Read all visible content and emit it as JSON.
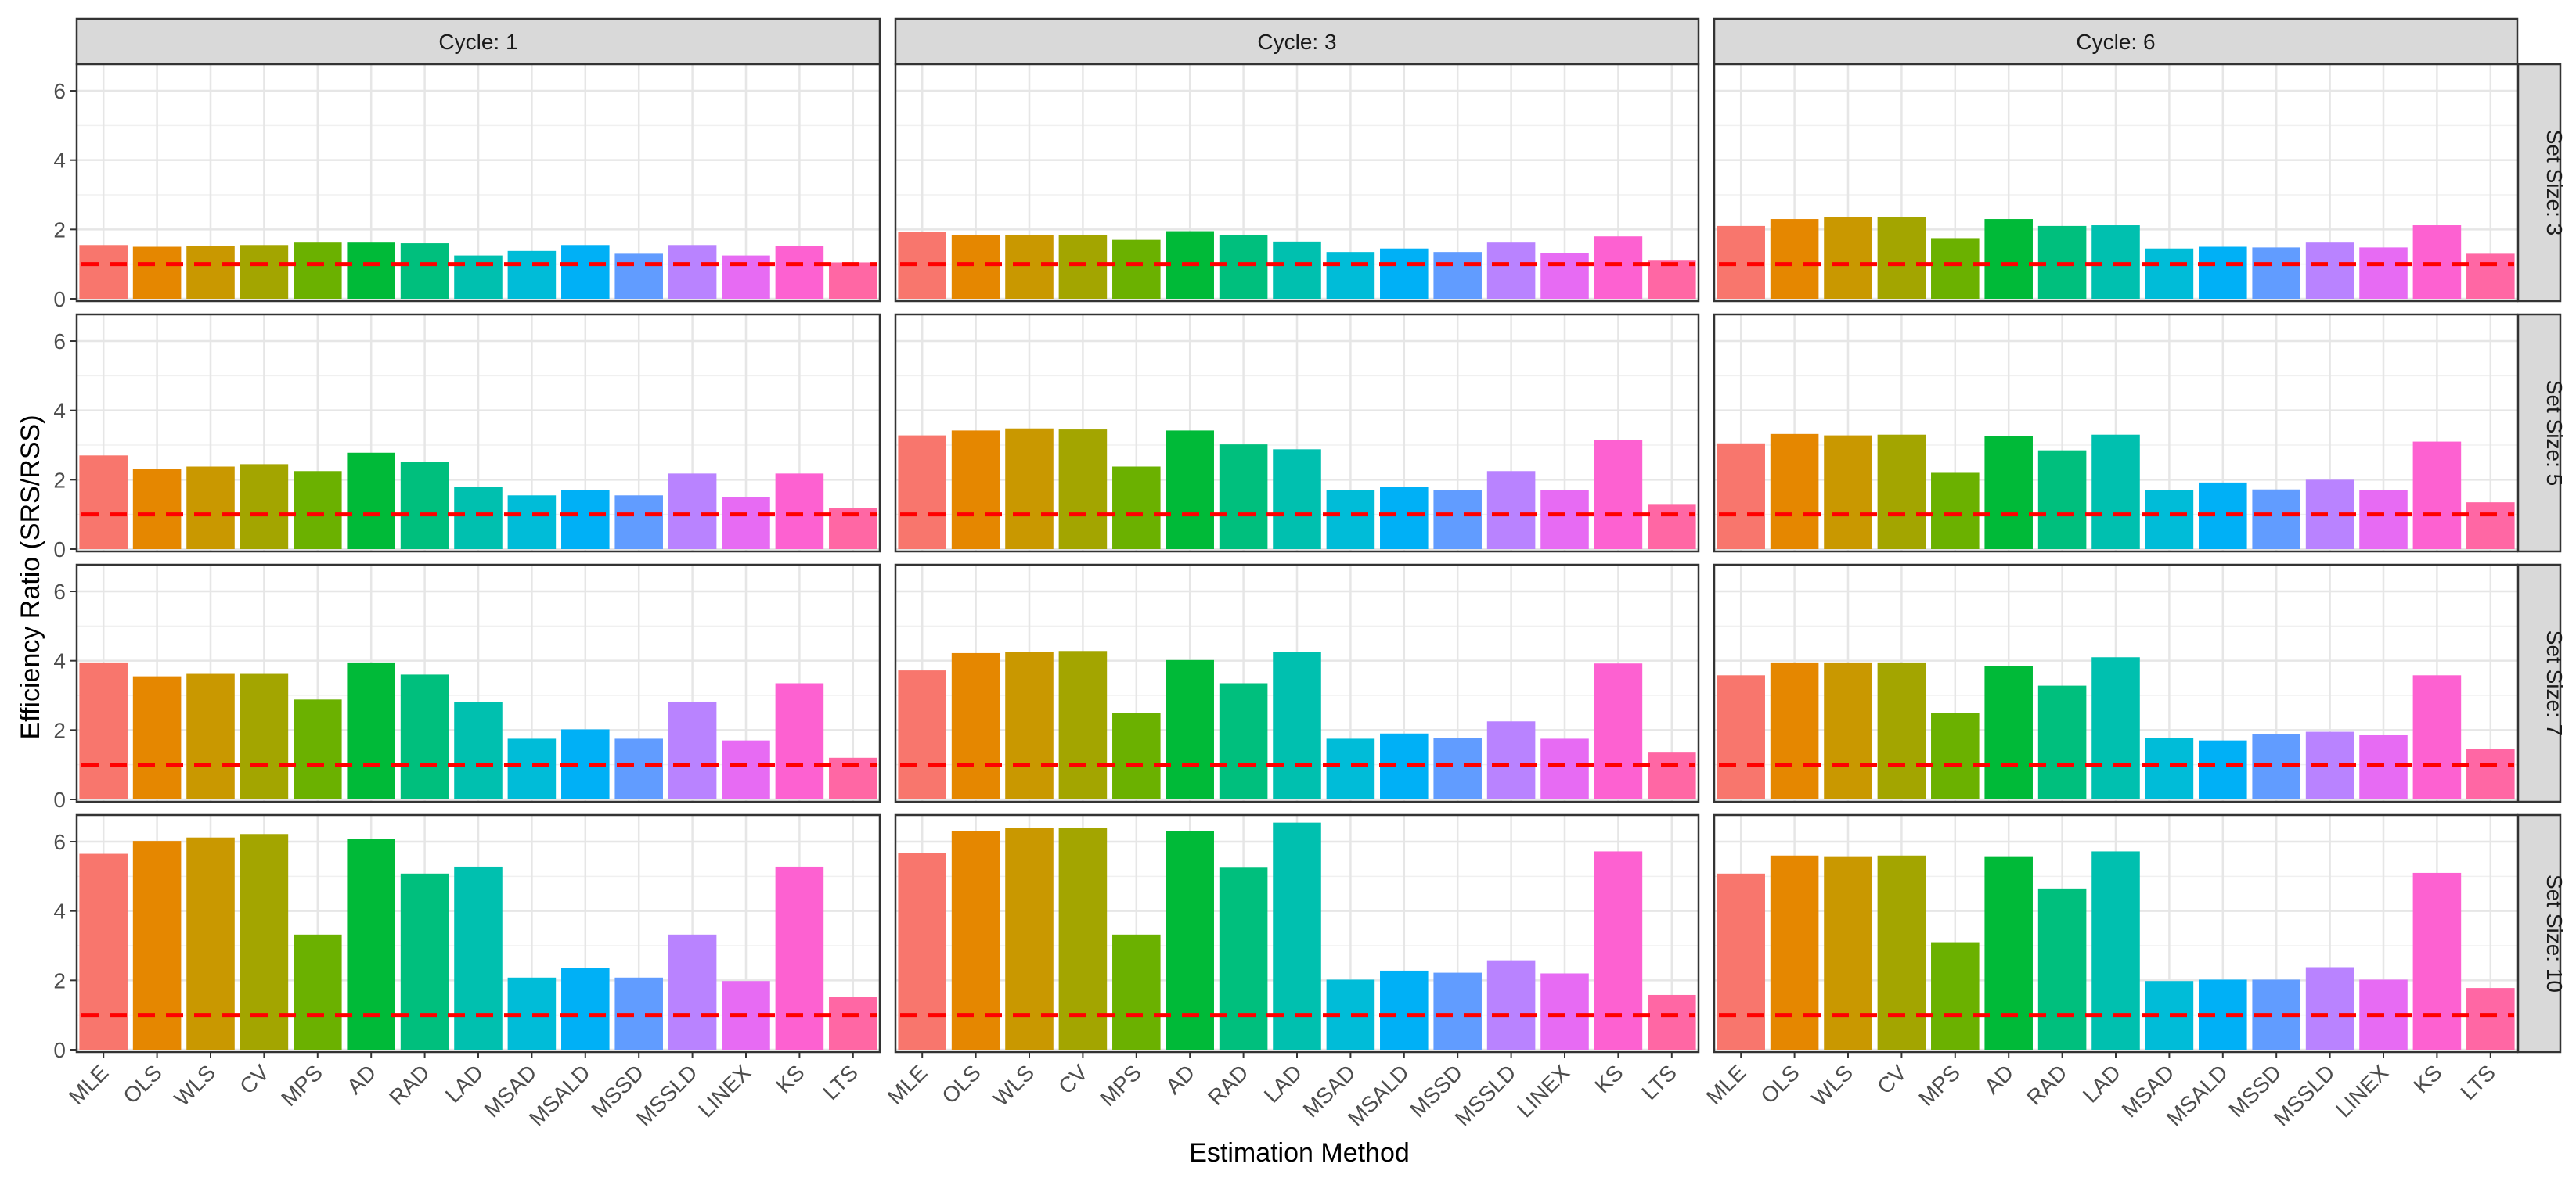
{
  "chart_data": {
    "type": "bar",
    "facet_layout": "grid",
    "xlabel": "Estimation Method",
    "ylabel": "Efficiency Ratio (SRS/RSS)",
    "ylim": [
      0,
      6.7
    ],
    "yticks": [
      "0",
      "2",
      "4",
      "6"
    ],
    "ytick_values": [
      0,
      2,
      4,
      6
    ],
    "reference_line": {
      "value": 1,
      "color": "#ff0000",
      "style": "dashed"
    },
    "categories": [
      "MLE",
      "OLS",
      "WLS",
      "CV",
      "MPS",
      "AD",
      "RAD",
      "LAD",
      "MSAD",
      "MSALD",
      "MSSD",
      "MSSLD",
      "LINEX",
      "KS",
      "LTS"
    ],
    "colors": [
      "#F8766D",
      "#E58700",
      "#C99800",
      "#A3A500",
      "#6BB100",
      "#00BA38",
      "#00BF7D",
      "#00C0AF",
      "#00BCD8",
      "#00B0F6",
      "#619CFF",
      "#B983FF",
      "#E76BF3",
      "#FD61D1",
      "#FF67A4"
    ],
    "col_facets": [
      "Cycle: 1",
      "Cycle: 3",
      "Cycle: 6"
    ],
    "row_facets": [
      "Set Size: 3",
      "Set Size: 5",
      "Set Size: 7",
      "Set Size: 10"
    ],
    "values": [
      [
        [
          1.55,
          1.5,
          1.52,
          1.55,
          1.62,
          1.62,
          1.6,
          1.25,
          1.38,
          1.55,
          1.3,
          1.55,
          1.25,
          1.52,
          1.05
        ],
        [
          1.92,
          1.85,
          1.85,
          1.85,
          1.7,
          1.95,
          1.85,
          1.65,
          1.35,
          1.45,
          1.35,
          1.62,
          1.32,
          1.8,
          1.1
        ],
        [
          2.1,
          2.3,
          2.35,
          2.35,
          1.75,
          2.3,
          2.1,
          2.12,
          1.45,
          1.5,
          1.48,
          1.62,
          1.48,
          2.12,
          1.3
        ]
      ],
      [
        [
          2.7,
          2.32,
          2.38,
          2.45,
          2.25,
          2.78,
          2.52,
          1.8,
          1.55,
          1.7,
          1.55,
          2.18,
          1.5,
          2.18,
          1.18
        ],
        [
          3.28,
          3.42,
          3.48,
          3.45,
          2.38,
          3.42,
          3.02,
          2.88,
          1.7,
          1.8,
          1.7,
          2.25,
          1.7,
          3.15,
          1.3
        ],
        [
          3.05,
          3.32,
          3.28,
          3.3,
          2.2,
          3.25,
          2.85,
          3.3,
          1.7,
          1.92,
          1.72,
          2.0,
          1.7,
          3.1,
          1.35
        ]
      ],
      [
        [
          3.95,
          3.55,
          3.62,
          3.62,
          2.88,
          3.95,
          3.6,
          2.82,
          1.75,
          2.02,
          1.75,
          2.82,
          1.7,
          3.35,
          1.2
        ],
        [
          3.72,
          4.22,
          4.25,
          4.28,
          2.5,
          4.02,
          3.35,
          4.25,
          1.75,
          1.9,
          1.78,
          2.25,
          1.75,
          3.92,
          1.35
        ],
        [
          3.58,
          3.95,
          3.95,
          3.95,
          2.5,
          3.85,
          3.28,
          4.1,
          1.78,
          1.7,
          1.88,
          1.95,
          1.85,
          3.58,
          1.45
        ]
      ],
      [
        [
          5.65,
          6.02,
          6.12,
          6.22,
          3.32,
          6.08,
          5.08,
          5.28,
          2.08,
          2.35,
          2.08,
          3.32,
          1.98,
          5.28,
          1.52
        ],
        [
          5.68,
          6.3,
          6.4,
          6.4,
          3.32,
          6.3,
          5.25,
          6.55,
          2.02,
          2.28,
          2.22,
          2.58,
          2.2,
          5.72,
          1.58
        ],
        [
          5.08,
          5.6,
          5.58,
          5.6,
          3.1,
          5.58,
          4.65,
          5.72,
          1.98,
          2.02,
          2.02,
          2.38,
          2.02,
          5.1,
          1.78
        ]
      ]
    ]
  }
}
